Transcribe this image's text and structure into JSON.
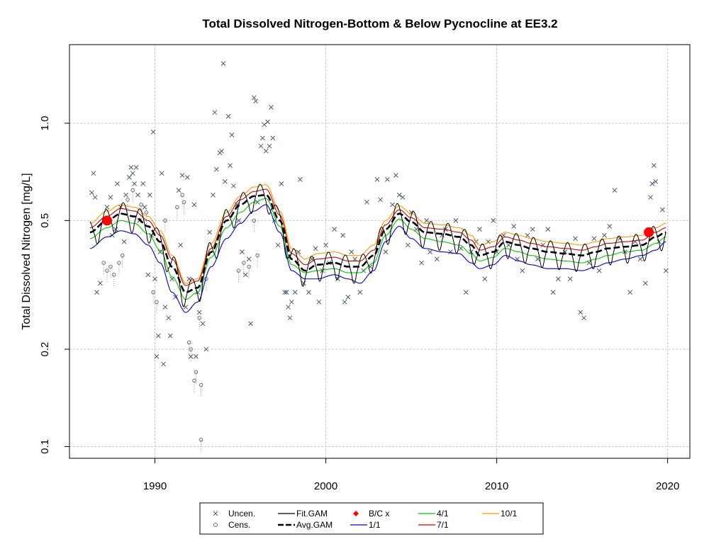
{
  "chart_data": {
    "type": "scatter",
    "title": "Total Dissolved Nitrogen-Bottom & Below Pycnocline at EE3.2",
    "xlabel": "",
    "ylabel": "Total Dissolved Nitrogen [mg/L]",
    "xlim": [
      1985.0,
      2021.3
    ],
    "ylim": [
      0.092,
      1.75
    ],
    "y_scale": "log",
    "x_ticks": [
      1990,
      2000,
      2010,
      2020
    ],
    "y_ticks": [
      0.1,
      0.2,
      0.5,
      1.0
    ],
    "y_tick_labels": [
      "0.1",
      "0.2",
      "0.5",
      "1.0"
    ],
    "grid": true,
    "legend_position": "bottom",
    "colors": {
      "uncensored": "#4a5a6a",
      "censored": "#6e6e6e",
      "fit_gam": "#000000",
      "avg_gam": "#000000",
      "bc": "#ff0000",
      "s1_1": "#0000cd",
      "s4_1": "#00cc00",
      "s7_1": "#cd0000",
      "s10_1": "#ff9900",
      "grid": "#c8c8c8"
    },
    "legend": [
      {
        "label": "Uncen.",
        "kind": "cross",
        "color": "#4a5a6a"
      },
      {
        "label": "Cens.",
        "kind": "circle",
        "color": "#6e6e6e"
      },
      {
        "label": "Fit.GAM",
        "kind": "line",
        "color": "#000000"
      },
      {
        "label": "Avg.GAM",
        "kind": "dash",
        "color": "#000000"
      },
      {
        "label": "B/C x",
        "kind": "diamond",
        "color": "#ff0000"
      },
      {
        "label": "1/1",
        "kind": "line",
        "color": "#0000cd"
      },
      {
        "label": "4/1",
        "kind": "line",
        "color": "#00cc00"
      },
      {
        "label": "7/1",
        "kind": "line",
        "color": "#cd0000"
      },
      {
        "label": "10/1",
        "kind": "line",
        "color": "#ff9900"
      }
    ],
    "trend_knots": {
      "x": [
        1986.2,
        1987.2,
        1988.0,
        1988.8,
        1989.6,
        1990.3,
        1991.0,
        1991.8,
        1992.5,
        1993.3,
        1994.2,
        1995.0,
        1995.8,
        1996.5,
        1997.3,
        1998.0,
        1998.8,
        1999.5,
        2000.5,
        2001.3,
        2002.0,
        2002.8,
        2003.5,
        2004.3,
        2005.0,
        2005.8,
        2006.8,
        2007.8,
        2008.5,
        2009.0,
        2009.8,
        2010.5,
        2011.3,
        2012.0,
        2013.0,
        2014.0,
        2015.0,
        2015.8,
        2016.5,
        2017.5,
        2018.5,
        2019.3,
        2019.9
      ],
      "avg_gam": [
        0.46,
        0.5,
        0.525,
        0.515,
        0.48,
        0.43,
        0.36,
        0.3,
        0.31,
        0.4,
        0.5,
        0.56,
        0.595,
        0.6,
        0.5,
        0.38,
        0.35,
        0.365,
        0.37,
        0.36,
        0.36,
        0.39,
        0.47,
        0.525,
        0.495,
        0.46,
        0.455,
        0.445,
        0.42,
        0.39,
        0.4,
        0.43,
        0.42,
        0.41,
        0.4,
        0.395,
        0.39,
        0.4,
        0.41,
        0.415,
        0.42,
        0.445,
        0.46
      ],
      "s1_1": [
        0.41,
        0.445,
        0.465,
        0.455,
        0.42,
        0.37,
        0.3,
        0.26,
        0.28,
        0.36,
        0.44,
        0.49,
        0.535,
        0.56,
        0.46,
        0.35,
        0.33,
        0.33,
        0.34,
        0.33,
        0.32,
        0.35,
        0.43,
        0.48,
        0.44,
        0.41,
        0.4,
        0.395,
        0.37,
        0.355,
        0.365,
        0.39,
        0.375,
        0.365,
        0.355,
        0.355,
        0.35,
        0.36,
        0.37,
        0.38,
        0.39,
        0.405,
        0.43
      ],
      "s4_1": [
        0.44,
        0.475,
        0.5,
        0.49,
        0.455,
        0.405,
        0.335,
        0.285,
        0.3,
        0.385,
        0.475,
        0.53,
        0.57,
        0.585,
        0.48,
        0.365,
        0.345,
        0.35,
        0.355,
        0.345,
        0.345,
        0.37,
        0.45,
        0.505,
        0.47,
        0.44,
        0.43,
        0.42,
        0.395,
        0.375,
        0.385,
        0.41,
        0.4,
        0.39,
        0.38,
        0.375,
        0.37,
        0.38,
        0.39,
        0.4,
        0.405,
        0.425,
        0.445
      ],
      "s7_1": [
        0.475,
        0.515,
        0.545,
        0.535,
        0.5,
        0.45,
        0.38,
        0.315,
        0.325,
        0.41,
        0.515,
        0.58,
        0.615,
        0.625,
        0.52,
        0.395,
        0.365,
        0.38,
        0.385,
        0.375,
        0.375,
        0.405,
        0.485,
        0.54,
        0.51,
        0.475,
        0.47,
        0.46,
        0.435,
        0.405,
        0.415,
        0.445,
        0.435,
        0.425,
        0.415,
        0.41,
        0.405,
        0.415,
        0.425,
        0.43,
        0.435,
        0.46,
        0.475
      ],
      "s10_1": [
        0.49,
        0.535,
        0.56,
        0.55,
        0.515,
        0.465,
        0.39,
        0.32,
        0.33,
        0.425,
        0.53,
        0.595,
        0.635,
        0.645,
        0.535,
        0.41,
        0.38,
        0.395,
        0.4,
        0.39,
        0.39,
        0.42,
        0.5,
        0.555,
        0.525,
        0.49,
        0.485,
        0.475,
        0.45,
        0.42,
        0.43,
        0.46,
        0.45,
        0.44,
        0.43,
        0.425,
        0.42,
        0.43,
        0.44,
        0.445,
        0.45,
        0.475,
        0.49
      ]
    },
    "seasonal_amplitude": 0.16,
    "bc_points": [
      {
        "x": 1987.2,
        "y": 0.5
      },
      {
        "x": 2018.9,
        "y": 0.46
      }
    ],
    "uncensored_points": [
      [
        1986.3,
        0.61
      ],
      [
        1986.4,
        0.7
      ],
      [
        1986.5,
        0.59
      ],
      [
        1986.6,
        0.3
      ],
      [
        1986.8,
        0.32
      ],
      [
        1987.0,
        0.5
      ],
      [
        1987.2,
        0.55
      ],
      [
        1987.4,
        0.59
      ],
      [
        1987.5,
        0.45
      ],
      [
        1987.7,
        0.47
      ],
      [
        1987.8,
        0.65
      ],
      [
        1988.0,
        0.55
      ],
      [
        1988.2,
        0.43
      ],
      [
        1988.3,
        0.6
      ],
      [
        1988.5,
        0.68
      ],
      [
        1988.6,
        0.73
      ],
      [
        1988.7,
        0.7
      ],
      [
        1988.8,
        0.65
      ],
      [
        1988.9,
        0.73
      ],
      [
        1989.0,
        0.6
      ],
      [
        1989.1,
        0.5
      ],
      [
        1989.3,
        0.65
      ],
      [
        1989.4,
        0.55
      ],
      [
        1989.6,
        0.34
      ],
      [
        1989.7,
        0.6
      ],
      [
        1989.8,
        0.45
      ],
      [
        1989.9,
        0.94
      ],
      [
        1990.0,
        0.33
      ],
      [
        1990.1,
        0.19
      ],
      [
        1990.2,
        0.22
      ],
      [
        1990.3,
        0.4
      ],
      [
        1990.4,
        0.7
      ],
      [
        1990.5,
        0.18
      ],
      [
        1990.6,
        0.27
      ],
      [
        1990.8,
        0.25
      ],
      [
        1990.9,
        0.22
      ],
      [
        1991.0,
        0.33
      ],
      [
        1991.2,
        0.29
      ],
      [
        1991.4,
        0.62
      ],
      [
        1991.5,
        0.42
      ],
      [
        1991.6,
        0.69
      ],
      [
        1991.8,
        0.27
      ],
      [
        1991.9,
        0.68
      ],
      [
        1992.0,
        0.33
      ],
      [
        1992.1,
        0.19
      ],
      [
        1992.3,
        0.56
      ],
      [
        1992.4,
        0.19
      ],
      [
        1992.5,
        0.3
      ],
      [
        1992.6,
        0.26
      ],
      [
        1992.8,
        0.24
      ],
      [
        1993.0,
        0.2
      ],
      [
        1993.2,
        0.46
      ],
      [
        1993.4,
        0.6
      ],
      [
        1993.5,
        1.08
      ],
      [
        1993.6,
        0.72
      ],
      [
        1993.8,
        0.81
      ],
      [
        1993.9,
        0.82
      ],
      [
        1994.0,
        1.53
      ],
      [
        1994.1,
        0.66
      ],
      [
        1994.3,
        1.05
      ],
      [
        1994.4,
        0.74
      ],
      [
        1994.5,
        0.92
      ],
      [
        1994.6,
        0.64
      ],
      [
        1994.8,
        0.56
      ],
      [
        1994.9,
        0.5
      ],
      [
        1995.1,
        0.4
      ],
      [
        1995.3,
        0.34
      ],
      [
        1995.5,
        0.38
      ],
      [
        1995.6,
        0.24
      ],
      [
        1995.8,
        1.2
      ],
      [
        1995.9,
        1.17
      ],
      [
        1996.0,
        0.57
      ],
      [
        1996.2,
        0.85
      ],
      [
        1996.3,
        0.9
      ],
      [
        1996.4,
        0.99
      ],
      [
        1996.5,
        0.82
      ],
      [
        1996.6,
        1.01
      ],
      [
        1996.7,
        0.85
      ],
      [
        1996.8,
        1.12
      ],
      [
        1996.9,
        0.9
      ],
      [
        1997.0,
        0.5
      ],
      [
        1997.2,
        0.42
      ],
      [
        1997.4,
        0.65
      ],
      [
        1997.6,
        0.3
      ],
      [
        1997.7,
        0.3
      ],
      [
        1997.8,
        0.27
      ],
      [
        1997.9,
        0.25
      ],
      [
        1998.0,
        0.28
      ],
      [
        1998.2,
        0.3
      ],
      [
        1998.4,
        0.4
      ],
      [
        1998.5,
        0.67
      ],
      [
        1998.7,
        0.32
      ],
      [
        1999.0,
        0.3
      ],
      [
        1999.2,
        0.38
      ],
      [
        1999.4,
        0.41
      ],
      [
        1999.6,
        0.28
      ],
      [
        1999.8,
        0.35
      ],
      [
        2000.0,
        0.42
      ],
      [
        2000.2,
        0.37
      ],
      [
        2000.5,
        0.47
      ],
      [
        2000.7,
        0.33
      ],
      [
        2001.0,
        0.45
      ],
      [
        2001.1,
        0.28
      ],
      [
        2001.3,
        0.29
      ],
      [
        2001.5,
        0.4
      ],
      [
        2001.7,
        0.38
      ],
      [
        2002.0,
        0.3
      ],
      [
        2002.2,
        0.35
      ],
      [
        2002.4,
        0.57
      ],
      [
        2002.6,
        0.36
      ],
      [
        2003.0,
        0.67
      ],
      [
        2003.2,
        0.58
      ],
      [
        2003.5,
        0.4
      ],
      [
        2003.6,
        0.67
      ],
      [
        2003.9,
        0.56
      ],
      [
        2004.1,
        0.69
      ],
      [
        2004.3,
        0.6
      ],
      [
        2004.5,
        0.59
      ],
      [
        2004.8,
        0.42
      ],
      [
        2005.0,
        0.53
      ],
      [
        2005.3,
        0.47
      ],
      [
        2005.6,
        0.37
      ],
      [
        2005.9,
        0.5
      ],
      [
        2006.1,
        0.4
      ],
      [
        2006.5,
        0.38
      ],
      [
        2006.8,
        0.45
      ],
      [
        2007.0,
        0.47
      ],
      [
        2007.3,
        0.4
      ],
      [
        2007.6,
        0.5
      ],
      [
        2007.9,
        0.41
      ],
      [
        2008.2,
        0.3
      ],
      [
        2008.5,
        0.4
      ],
      [
        2008.8,
        0.43
      ],
      [
        2009.0,
        0.47
      ],
      [
        2009.3,
        0.33
      ],
      [
        2009.5,
        0.43
      ],
      [
        2009.8,
        0.5
      ],
      [
        2010.0,
        0.4
      ],
      [
        2010.4,
        0.45
      ],
      [
        2010.7,
        0.42
      ],
      [
        2011.0,
        0.48
      ],
      [
        2011.2,
        0.38
      ],
      [
        2011.5,
        0.35
      ],
      [
        2011.8,
        0.45
      ],
      [
        2012.1,
        0.47
      ],
      [
        2012.4,
        0.38
      ],
      [
        2012.7,
        0.42
      ],
      [
        2013.0,
        0.47
      ],
      [
        2013.3,
        0.3
      ],
      [
        2013.6,
        0.33
      ],
      [
        2014.0,
        0.4
      ],
      [
        2014.3,
        0.33
      ],
      [
        2014.6,
        0.44
      ],
      [
        2014.9,
        0.26
      ],
      [
        2015.1,
        0.25
      ],
      [
        2015.4,
        0.37
      ],
      [
        2015.7,
        0.44
      ],
      [
        2016.0,
        0.35
      ],
      [
        2016.3,
        0.45
      ],
      [
        2016.6,
        0.48
      ],
      [
        2016.9,
        0.62
      ],
      [
        2017.2,
        0.44
      ],
      [
        2017.5,
        0.4
      ],
      [
        2017.8,
        0.3
      ],
      [
        2018.1,
        0.43
      ],
      [
        2018.4,
        0.38
      ],
      [
        2018.7,
        0.32
      ],
      [
        2019.0,
        0.59
      ],
      [
        2019.1,
        0.65
      ],
      [
        2019.2,
        0.74
      ],
      [
        2019.3,
        0.66
      ],
      [
        2019.5,
        0.43
      ],
      [
        2019.7,
        0.54
      ],
      [
        2019.9,
        0.35
      ]
    ],
    "censored_points": [
      [
        1987.0,
        0.37
      ],
      [
        1987.2,
        0.35
      ],
      [
        1987.4,
        0.36
      ],
      [
        1987.6,
        0.34
      ],
      [
        1987.9,
        0.37
      ],
      [
        1988.1,
        0.39
      ],
      [
        1988.4,
        0.58
      ],
      [
        1988.7,
        0.62
      ],
      [
        1989.2,
        0.56
      ],
      [
        1989.5,
        0.53
      ],
      [
        1989.9,
        0.3
      ],
      [
        1990.1,
        0.28
      ],
      [
        1990.6,
        0.5
      ],
      [
        1991.3,
        0.55
      ],
      [
        1991.6,
        0.6
      ],
      [
        1991.7,
        0.57
      ],
      [
        1992.0,
        0.21
      ],
      [
        1992.1,
        0.2
      ],
      [
        1992.3,
        0.16
      ],
      [
        1992.4,
        0.17
      ],
      [
        1992.6,
        0.25
      ],
      [
        1992.7,
        0.155
      ],
      [
        1992.7,
        0.105
      ],
      [
        1993.0,
        0.33
      ],
      [
        1994.9,
        0.35
      ],
      [
        1995.2,
        0.37
      ],
      [
        1995.5,
        0.36
      ],
      [
        1995.8,
        0.5
      ],
      [
        1996.0,
        0.39
      ]
    ]
  }
}
